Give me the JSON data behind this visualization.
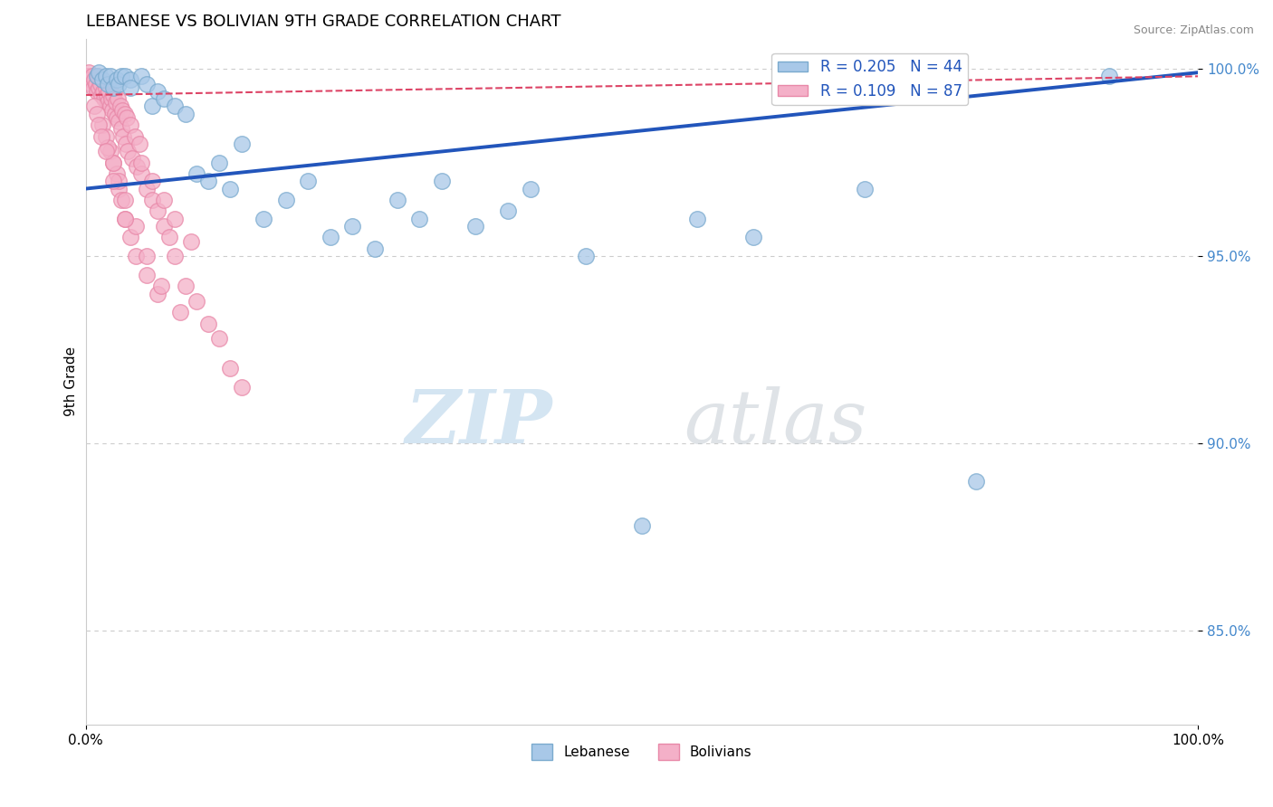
{
  "title": "LEBANESE VS BOLIVIAN 9TH GRADE CORRELATION CHART",
  "source": "Source: ZipAtlas.com",
  "ylabel": "9th Grade",
  "yticks": [
    0.85,
    0.9,
    0.95,
    1.0
  ],
  "ytick_labels": [
    "85.0%",
    "90.0%",
    "95.0%",
    "100.0%"
  ],
  "blue_scatter_x": [
    0.01,
    0.012,
    0.015,
    0.018,
    0.02,
    0.022,
    0.025,
    0.028,
    0.03,
    0.032,
    0.035,
    0.04,
    0.04,
    0.05,
    0.055,
    0.06,
    0.065,
    0.07,
    0.08,
    0.09,
    0.1,
    0.11,
    0.12,
    0.13,
    0.14,
    0.16,
    0.18,
    0.2,
    0.22,
    0.24,
    0.26,
    0.28,
    0.3,
    0.32,
    0.35,
    0.38,
    0.4,
    0.45,
    0.5,
    0.55,
    0.6,
    0.7,
    0.8,
    0.92
  ],
  "blue_scatter_y": [
    0.998,
    0.999,
    0.997,
    0.998,
    0.996,
    0.998,
    0.995,
    0.997,
    0.996,
    0.998,
    0.998,
    0.997,
    0.995,
    0.998,
    0.996,
    0.99,
    0.994,
    0.992,
    0.99,
    0.988,
    0.972,
    0.97,
    0.975,
    0.968,
    0.98,
    0.96,
    0.965,
    0.97,
    0.955,
    0.958,
    0.952,
    0.965,
    0.96,
    0.97,
    0.958,
    0.962,
    0.968,
    0.95,
    0.878,
    0.96,
    0.955,
    0.968,
    0.89,
    0.998
  ],
  "pink_scatter_x": [
    0.002,
    0.003,
    0.004,
    0.005,
    0.006,
    0.007,
    0.008,
    0.009,
    0.01,
    0.011,
    0.012,
    0.013,
    0.014,
    0.015,
    0.016,
    0.017,
    0.018,
    0.019,
    0.02,
    0.021,
    0.022,
    0.023,
    0.024,
    0.025,
    0.026,
    0.027,
    0.028,
    0.029,
    0.03,
    0.031,
    0.032,
    0.033,
    0.034,
    0.035,
    0.036,
    0.037,
    0.038,
    0.04,
    0.042,
    0.044,
    0.046,
    0.048,
    0.05,
    0.055,
    0.06,
    0.065,
    0.07,
    0.075,
    0.08,
    0.09,
    0.1,
    0.11,
    0.12,
    0.13,
    0.14,
    0.05,
    0.06,
    0.07,
    0.08,
    0.095,
    0.022,
    0.025,
    0.028,
    0.03,
    0.032,
    0.035,
    0.04,
    0.045,
    0.055,
    0.065,
    0.015,
    0.018,
    0.02,
    0.025,
    0.03,
    0.035,
    0.045,
    0.055,
    0.068,
    0.085,
    0.008,
    0.01,
    0.012,
    0.014,
    0.018,
    0.025,
    0.035
  ],
  "pink_scatter_y": [
    0.998,
    0.999,
    0.997,
    0.996,
    0.998,
    0.995,
    0.997,
    0.996,
    0.994,
    0.998,
    0.995,
    0.996,
    0.993,
    0.997,
    0.994,
    0.992,
    0.995,
    0.993,
    0.991,
    0.994,
    0.99,
    0.992,
    0.989,
    0.993,
    0.988,
    0.991,
    0.987,
    0.992,
    0.986,
    0.99,
    0.984,
    0.989,
    0.982,
    0.988,
    0.98,
    0.987,
    0.978,
    0.985,
    0.976,
    0.982,
    0.974,
    0.98,
    0.972,
    0.968,
    0.965,
    0.962,
    0.958,
    0.955,
    0.95,
    0.942,
    0.938,
    0.932,
    0.928,
    0.92,
    0.915,
    0.975,
    0.97,
    0.965,
    0.96,
    0.954,
    0.978,
    0.975,
    0.972,
    0.968,
    0.965,
    0.96,
    0.955,
    0.95,
    0.945,
    0.94,
    0.985,
    0.982,
    0.979,
    0.975,
    0.97,
    0.965,
    0.958,
    0.95,
    0.942,
    0.935,
    0.99,
    0.988,
    0.985,
    0.982,
    0.978,
    0.97,
    0.96
  ],
  "blue_line_y_start": 0.968,
  "blue_line_y_end": 0.999,
  "pink_line_y_start": 0.993,
  "pink_line_y_end": 0.998,
  "scatter_size": 160,
  "blue_color": "#a8c8e8",
  "blue_edge": "#7aaace",
  "pink_color": "#f4b0c8",
  "pink_edge": "#e888a8",
  "blue_line_color": "#2255bb",
  "pink_line_color": "#dd4466",
  "xlim": [
    0.0,
    1.0
  ],
  "ylim": [
    0.825,
    1.008
  ]
}
